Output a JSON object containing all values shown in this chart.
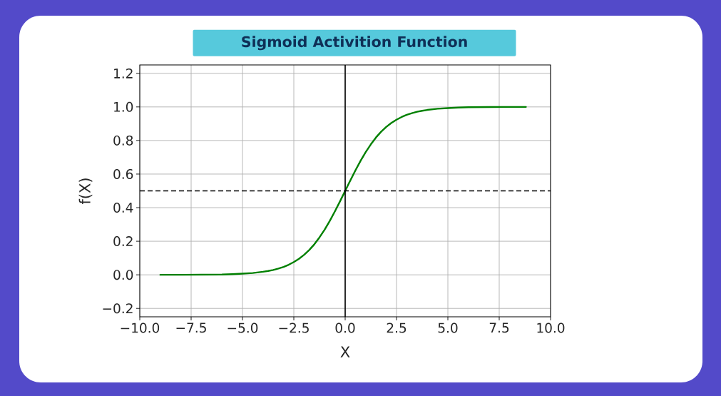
{
  "chart_data": {
    "type": "line",
    "title": "Sigmoid Activition Function",
    "xlabel": "X",
    "ylabel": "f(X)",
    "x": [
      -9,
      -8,
      -7,
      -6,
      -5.5,
      -5,
      -4.5,
      -4,
      -3.75,
      -3.5,
      -3.25,
      -3,
      -2.75,
      -2.5,
      -2.25,
      -2,
      -1.75,
      -1.5,
      -1.25,
      -1,
      -0.75,
      -0.5,
      -0.25,
      0,
      0.25,
      0.5,
      0.75,
      1,
      1.25,
      1.5,
      1.75,
      2,
      2.25,
      2.5,
      2.75,
      3,
      3.25,
      3.5,
      3.75,
      4,
      4.5,
      5,
      5.5,
      6,
      7,
      8,
      8.8
    ],
    "series": [
      {
        "color": "#008000",
        "values": [
          0,
          0,
          0.001,
          0.002,
          0.004,
          0.007,
          0.011,
          0.018,
          0.023,
          0.029,
          0.037,
          0.047,
          0.06,
          0.076,
          0.095,
          0.119,
          0.148,
          0.182,
          0.223,
          0.269,
          0.321,
          0.378,
          0.438,
          0.5,
          0.562,
          0.622,
          0.679,
          0.731,
          0.777,
          0.818,
          0.852,
          0.881,
          0.905,
          0.924,
          0.94,
          0.953,
          0.963,
          0.971,
          0.977,
          0.982,
          0.989,
          0.993,
          0.996,
          0.998,
          0.999,
          1,
          1
        ]
      }
    ],
    "xlim": [
      -10,
      10
    ],
    "ylim": [
      -0.25,
      1.25
    ],
    "xticks": [
      {
        "value": -10,
        "label": "−10.0"
      },
      {
        "value": -7.5,
        "label": "−7.5"
      },
      {
        "value": -5,
        "label": "−5.0"
      },
      {
        "value": -2.5,
        "label": "−2.5"
      },
      {
        "value": 0,
        "label": "0.0"
      },
      2.5,
      {
        "value": 5,
        "label": "5.0"
      },
      7.5,
      {
        "value": 10,
        "label": "10.0"
      }
    ],
    "yticks": [
      {
        "value": -0.2,
        "label": "−0.2"
      },
      {
        "value": 0,
        "label": "0.0"
      },
      0.2,
      0.4,
      0.6,
      0.8,
      {
        "value": 1,
        "label": "1.0"
      },
      1.2
    ],
    "grid": true,
    "line_style": "solid",
    "ref_lines": [
      {
        "axis": "y",
        "value": 0.5,
        "color": "#000000",
        "line_style": "dashed"
      },
      {
        "axis": "x",
        "value": 0,
        "color": "#000000",
        "line_style": "solid"
      }
    ]
  }
}
